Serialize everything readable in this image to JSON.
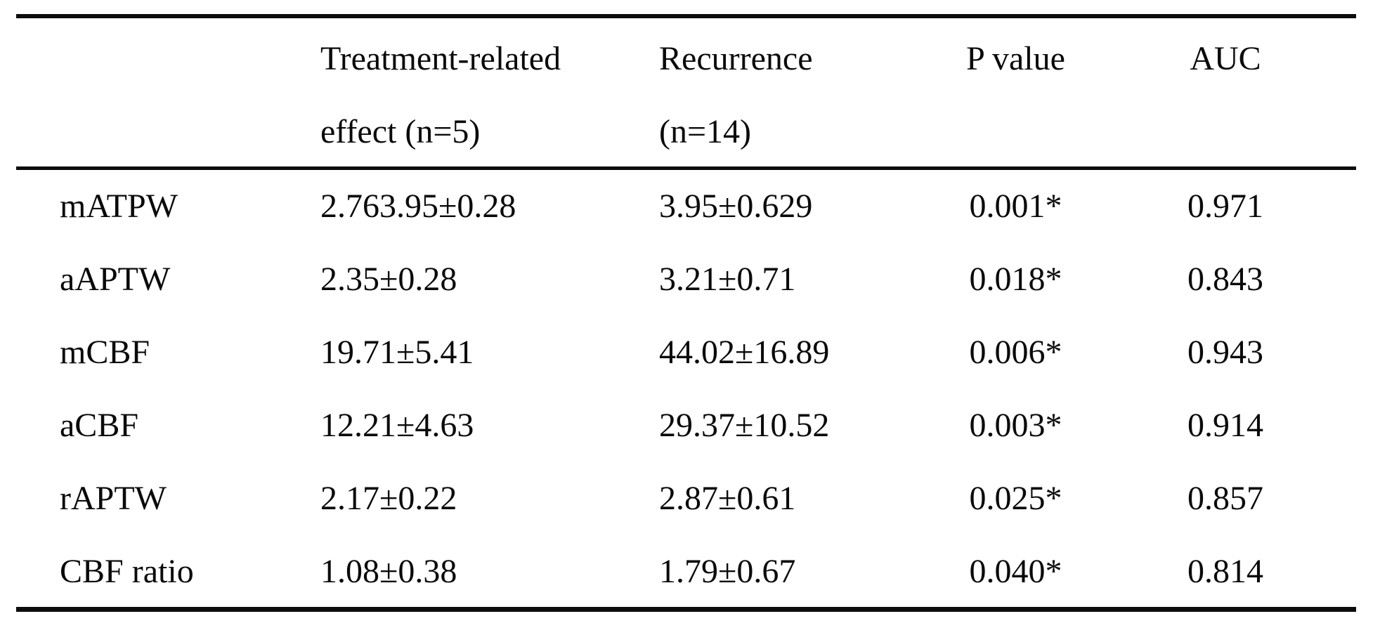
{
  "colors": {
    "background": "#ffffff",
    "text": "#0a0a0a",
    "rule": "#0d0d0d"
  },
  "table": {
    "header": {
      "row_label": "",
      "treatment": {
        "line1": "Treatment-related",
        "line2": "effect (n=5)"
      },
      "recurrence": {
        "line1": "Recurrence",
        "line2": "(n=14)"
      },
      "p_value": "P value",
      "auc": "AUC"
    },
    "rows": [
      {
        "label": "mATPW",
        "treatment_effect": "2.763.95±0.28",
        "recurrence": "3.95±0.629",
        "p_value": "0.001*",
        "auc": "0.971"
      },
      {
        "label": "aAPTW",
        "treatment_effect": "2.35±0.28",
        "recurrence": "3.21±0.71",
        "p_value": "0.018*",
        "auc": "0.843"
      },
      {
        "label": "mCBF",
        "treatment_effect": "19.71±5.41",
        "recurrence": "44.02±16.89",
        "p_value": "0.006*",
        "auc": "0.943"
      },
      {
        "label": "aCBF",
        "treatment_effect": "12.21±4.63",
        "recurrence": "29.37±10.52",
        "p_value": "0.003*",
        "auc": "0.914"
      },
      {
        "label": "rAPTW",
        "treatment_effect": "2.17±0.22",
        "recurrence": "2.87±0.61",
        "p_value": "0.025*",
        "auc": "0.857"
      },
      {
        "label": "CBF ratio",
        "treatment_effect": "1.08±0.38",
        "recurrence": "1.79±0.67",
        "p_value": "0.040*",
        "auc": "0.814"
      }
    ]
  },
  "chart_data": {
    "type": "table",
    "columns": [
      "",
      "Treatment-related effect (n=5)",
      "Recurrence (n=14)",
      "P value",
      "AUC"
    ],
    "rows": [
      [
        "mATPW",
        "2.763.95±0.28",
        "3.95±0.629",
        "0.001*",
        "0.971"
      ],
      [
        "aAPTW",
        "2.35±0.28",
        "3.21±0.71",
        "0.018*",
        "0.843"
      ],
      [
        "mCBF",
        "19.71±5.41",
        "44.02±16.89",
        "0.006*",
        "0.943"
      ],
      [
        "aCBF",
        "12.21±4.63",
        "29.37±10.52",
        "0.003*",
        "0.914"
      ],
      [
        "rAPTW",
        "2.17±0.22",
        "2.87±0.61",
        "0.025*",
        "0.857"
      ],
      [
        "CBF ratio",
        "1.08±0.38",
        "1.79±0.67",
        "0.040*",
        "0.814"
      ]
    ]
  }
}
